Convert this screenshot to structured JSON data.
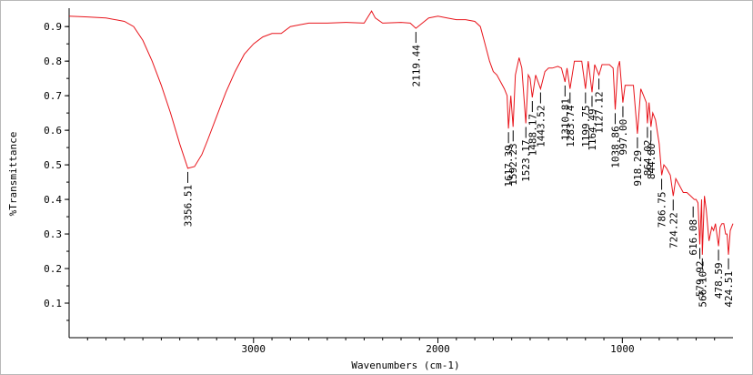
{
  "chart_data": {
    "type": "line",
    "title": "",
    "xlabel": "Wavenumbers (cm-1)",
    "ylabel": "%Transmittance",
    "xlim": [
      4000,
      400
    ],
    "ylim": [
      0.0,
      0.95
    ],
    "x_ticks": [
      3000,
      2000,
      1000
    ],
    "y_ticks": [
      0.1,
      0.2,
      0.3,
      0.4,
      0.5,
      0.6,
      0.7,
      0.8,
      0.9
    ],
    "x_tick_labels": [
      "3000",
      "2000",
      "1000"
    ],
    "y_tick_labels": [
      "0.1",
      "0.2",
      "0.3",
      "0.4",
      "0.5",
      "0.6",
      "0.7",
      "0.8",
      "0.9"
    ],
    "grid": false,
    "legend": "none",
    "series": [
      {
        "color": "#e8141b",
        "x": [
          4000,
          3900,
          3800,
          3700,
          3650,
          3600,
          3550,
          3500,
          3450,
          3400,
          3356.51,
          3320,
          3280,
          3250,
          3200,
          3150,
          3100,
          3050,
          3000,
          2950,
          2900,
          2850,
          2800,
          2750,
          2700,
          2600,
          2500,
          2400,
          2360,
          2340,
          2300,
          2200,
          2150,
          2119.44,
          2080,
          2050,
          2000,
          1950,
          1900,
          1850,
          1800,
          1770,
          1750,
          1720,
          1700,
          1680,
          1660,
          1640,
          1625,
          1617.39,
          1605,
          1592.23,
          1580,
          1560,
          1545,
          1523.17,
          1510,
          1500,
          1488.17,
          1470,
          1443.52,
          1420,
          1400,
          1380,
          1350,
          1330,
          1310.81,
          1300,
          1283.74,
          1260,
          1240,
          1220,
          1199.75,
          1185,
          1164.49,
          1150,
          1127.12,
          1110,
          1090,
          1070,
          1050,
          1038.86,
          1025,
          1015,
          997.0,
          985,
          960,
          940,
          918.29,
          900,
          885,
          870,
          864.02,
          855,
          844.8,
          835,
          820,
          800,
          786.75,
          775,
          760,
          740,
          724.22,
          710,
          690,
          670,
          650,
          630,
          610,
          600,
          590,
          579.92,
          570,
          566.1,
          555,
          545,
          530,
          515,
          505,
          495,
          478.59,
          470,
          460,
          450,
          440,
          432,
          424.51,
          415,
          400
        ],
        "values": [
          0.93,
          0.928,
          0.925,
          0.915,
          0.9,
          0.86,
          0.8,
          0.73,
          0.65,
          0.56,
          0.49,
          0.495,
          0.53,
          0.57,
          0.64,
          0.71,
          0.77,
          0.82,
          0.85,
          0.87,
          0.88,
          0.88,
          0.9,
          0.905,
          0.91,
          0.91,
          0.912,
          0.91,
          0.945,
          0.925,
          0.91,
          0.912,
          0.91,
          0.895,
          0.912,
          0.925,
          0.93,
          0.925,
          0.92,
          0.92,
          0.915,
          0.9,
          0.86,
          0.8,
          0.77,
          0.76,
          0.74,
          0.72,
          0.7,
          0.605,
          0.7,
          0.61,
          0.76,
          0.81,
          0.78,
          0.62,
          0.76,
          0.75,
          0.695,
          0.76,
          0.72,
          0.77,
          0.78,
          0.78,
          0.785,
          0.78,
          0.74,
          0.78,
          0.72,
          0.8,
          0.8,
          0.8,
          0.72,
          0.8,
          0.71,
          0.79,
          0.76,
          0.79,
          0.79,
          0.79,
          0.78,
          0.66,
          0.78,
          0.8,
          0.68,
          0.73,
          0.73,
          0.73,
          0.59,
          0.72,
          0.7,
          0.68,
          0.62,
          0.68,
          0.61,
          0.65,
          0.63,
          0.56,
          0.47,
          0.5,
          0.49,
          0.47,
          0.41,
          0.46,
          0.44,
          0.42,
          0.42,
          0.41,
          0.4,
          0.4,
          0.39,
          0.27,
          0.4,
          0.24,
          0.41,
          0.37,
          0.28,
          0.32,
          0.31,
          0.33,
          0.265,
          0.32,
          0.33,
          0.33,
          0.3,
          0.3,
          0.24,
          0.31,
          0.33
        ]
      }
    ],
    "annotations": [
      {
        "label": "3356.51",
        "x": 3356.51,
        "y": 0.49
      },
      {
        "label": "2119.44",
        "x": 2119.44,
        "y": 0.895
      },
      {
        "label": "1617.39",
        "x": 1617.39,
        "y": 0.605
      },
      {
        "label": "1592.23",
        "x": 1592.23,
        "y": 0.61
      },
      {
        "label": "1523.17",
        "x": 1523.17,
        "y": 0.62
      },
      {
        "label": "1488.17",
        "x": 1488.17,
        "y": 0.695
      },
      {
        "label": "1443.52",
        "x": 1443.52,
        "y": 0.72
      },
      {
        "label": "1310.81",
        "x": 1310.81,
        "y": 0.74
      },
      {
        "label": "1283.74",
        "x": 1283.74,
        "y": 0.72
      },
      {
        "label": "1199.75",
        "x": 1199.75,
        "y": 0.72
      },
      {
        "label": "1164.49",
        "x": 1164.49,
        "y": 0.71
      },
      {
        "label": "1127.12",
        "x": 1127.12,
        "y": 0.76
      },
      {
        "label": "1038.86",
        "x": 1038.86,
        "y": 0.66
      },
      {
        "label": "997.00",
        "x": 997.0,
        "y": 0.68
      },
      {
        "label": "918.29",
        "x": 918.29,
        "y": 0.59
      },
      {
        "label": "864.02",
        "x": 864.02,
        "y": 0.62
      },
      {
        "label": "844.80",
        "x": 844.8,
        "y": 0.61
      },
      {
        "label": "786.75",
        "x": 786.75,
        "y": 0.47
      },
      {
        "label": "724.22",
        "x": 724.22,
        "y": 0.41
      },
      {
        "label": "616.08",
        "x": 616.08,
        "y": 0.39
      },
      {
        "label": "579.92",
        "x": 579.92,
        "y": 0.27
      },
      {
        "label": "566.10",
        "x": 566.1,
        "y": 0.24
      },
      {
        "label": "478.59",
        "x": 478.59,
        "y": 0.265
      },
      {
        "label": "424.51",
        "x": 424.51,
        "y": 0.24
      }
    ]
  }
}
